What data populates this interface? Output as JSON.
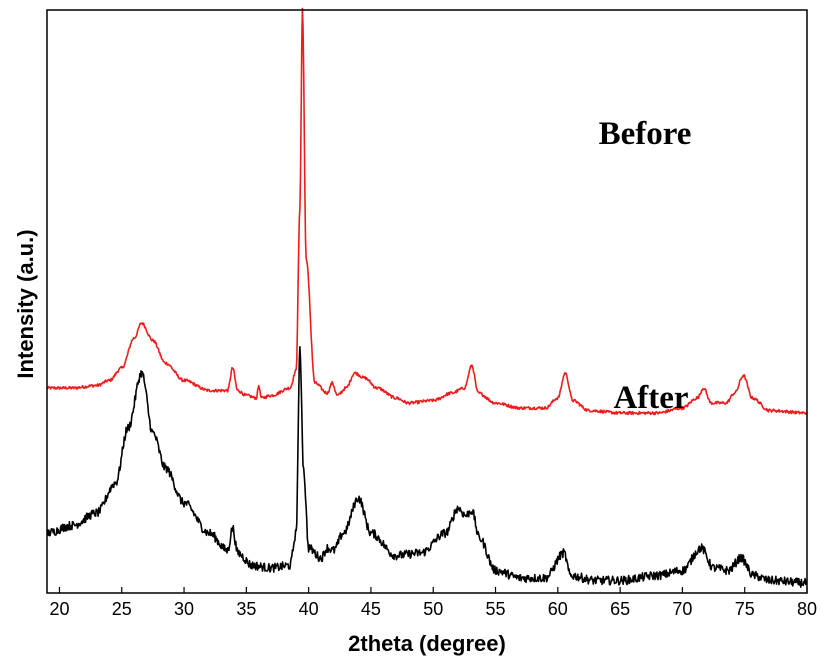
{
  "chart_data": {
    "type": "line",
    "title": "",
    "xlabel": "2theta (degree)",
    "ylabel": "Intensity (a.u.)",
    "xlim": [
      19,
      80
    ],
    "x_ticks": [
      20,
      25,
      30,
      35,
      40,
      45,
      50,
      55,
      60,
      65,
      70,
      75,
      80
    ],
    "y_ticks_shown": false,
    "grid": false,
    "legend": "none",
    "annotations": [
      {
        "text": "Before",
        "series": 0
      },
      {
        "text": "After",
        "series": 1
      }
    ],
    "series": [
      {
        "color": "#ee1c1c",
        "x": [
          19,
          21,
          23,
          24,
          25,
          26,
          26.6,
          27.5,
          28.5,
          30,
          32,
          33.5,
          33.9,
          34.3,
          35,
          35.8,
          36,
          36.2,
          37,
          38.5,
          39,
          39.3,
          39.5,
          39.8,
          40.5,
          41.5,
          41.9,
          42.3,
          43,
          43.7,
          44.5,
          45.5,
          47,
          48,
          50,
          51.5,
          52.5,
          53.1,
          53.6,
          55,
          57,
          59,
          60,
          60.6,
          61.2,
          62.5,
          65,
          68,
          70,
          71.2,
          71.7,
          72.3,
          73.5,
          74.2,
          74.9,
          75.6,
          77,
          80
        ],
        "y": [
          0.78,
          0.78,
          0.79,
          0.81,
          0.86,
          0.98,
          1.04,
          0.97,
          0.88,
          0.81,
          0.77,
          0.77,
          0.86,
          0.77,
          0.75,
          0.74,
          0.79,
          0.74,
          0.75,
          0.78,
          0.85,
          1.5,
          2.3,
          1.3,
          0.8,
          0.76,
          0.8,
          0.75,
          0.78,
          0.84,
          0.82,
          0.78,
          0.74,
          0.72,
          0.73,
          0.76,
          0.78,
          0.87,
          0.76,
          0.72,
          0.7,
          0.7,
          0.74,
          0.84,
          0.73,
          0.69,
          0.68,
          0.68,
          0.7,
          0.74,
          0.78,
          0.72,
          0.72,
          0.76,
          0.83,
          0.74,
          0.69,
          0.68
        ]
      },
      {
        "color": "#000000",
        "x": [
          19,
          21,
          23,
          24.5,
          25.5,
          26.6,
          27.5,
          28.5,
          30,
          32,
          33.5,
          33.9,
          34.3,
          35.5,
          37,
          38.5,
          39,
          39.3,
          39.6,
          40,
          41,
          41.5,
          42,
          42.8,
          44,
          45,
          47,
          49,
          51,
          52,
          52.6,
          53.1,
          53.7,
          55,
          57,
          59,
          60.5,
          61,
          63,
          65,
          68,
          70,
          71.5,
          72.5,
          73.7,
          74.7,
          75.7,
          77,
          80
        ],
        "y": [
          0.2,
          0.23,
          0.28,
          0.4,
          0.62,
          0.84,
          0.6,
          0.46,
          0.32,
          0.2,
          0.13,
          0.22,
          0.12,
          0.07,
          0.06,
          0.07,
          0.2,
          0.93,
          0.45,
          0.14,
          0.1,
          0.14,
          0.13,
          0.2,
          0.34,
          0.2,
          0.11,
          0.12,
          0.2,
          0.3,
          0.27,
          0.29,
          0.18,
          0.05,
          0.02,
          0.02,
          0.12,
          0.03,
          0.01,
          0.01,
          0.03,
          0.05,
          0.14,
          0.06,
          0.05,
          0.1,
          0.03,
          0.01,
          0.0
        ]
      }
    ]
  }
}
